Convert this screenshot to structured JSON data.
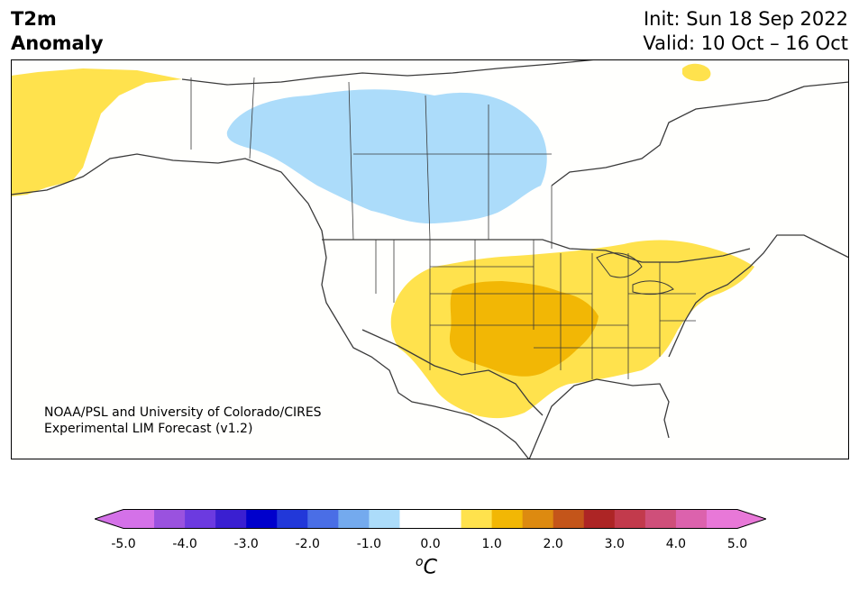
{
  "title": {
    "left_line1": "T2m",
    "left_line2": "Anomaly",
    "init": "Init: Sun 18 Sep 2022",
    "valid": "Valid: 10 Oct – 16 Oct"
  },
  "credit": {
    "line1": "NOAA/PSL and University of Colorado/CIRES",
    "line2": "Experimental LIM Forecast (v1.2)"
  },
  "colorbar": {
    "unit_base": "C",
    "unit_sup": "o",
    "ticks": [
      "-5.0",
      "-4.0",
      "-3.0",
      "-2.0",
      "-1.0",
      "0.0",
      "1.0",
      "2.0",
      "3.0",
      "4.0",
      "5.0"
    ],
    "colors": [
      "#d471e8",
      "#9a52df",
      "#6c3ae0",
      "#3a1fd1",
      "#0000cc",
      "#2238d9",
      "#4a6ee6",
      "#74aaee",
      "#acdcfa",
      "#ffffff",
      "#ffffff",
      "#ffe24d",
      "#f2b705",
      "#dd8a10",
      "#c4551a",
      "#ad2525",
      "#c23a4c",
      "#cf4f7a",
      "#dc62ad",
      "#e878d8"
    ],
    "under_color": "#d471e8",
    "over_color": "#e878d8"
  },
  "anomaly_regions": [
    {
      "name": "alaska-warm",
      "level": "0.5 to 1.0",
      "color": "#ffe24d"
    },
    {
      "name": "canada-cool",
      "level": "-1.0 to -0.5",
      "color": "#acdcfa"
    },
    {
      "name": "central-us-warm",
      "level": "0.5 to 1.0",
      "color": "#ffe24d"
    },
    {
      "name": "plains-warm-core",
      "level": "1.0 to 1.5",
      "color": "#f2b705"
    },
    {
      "name": "northeast-warm",
      "level": "0.5 to 1.0",
      "color": "#ffe24d"
    },
    {
      "name": "baffin-warm",
      "level": "0.5 to 1.0",
      "color": "#ffe24d"
    }
  ]
}
